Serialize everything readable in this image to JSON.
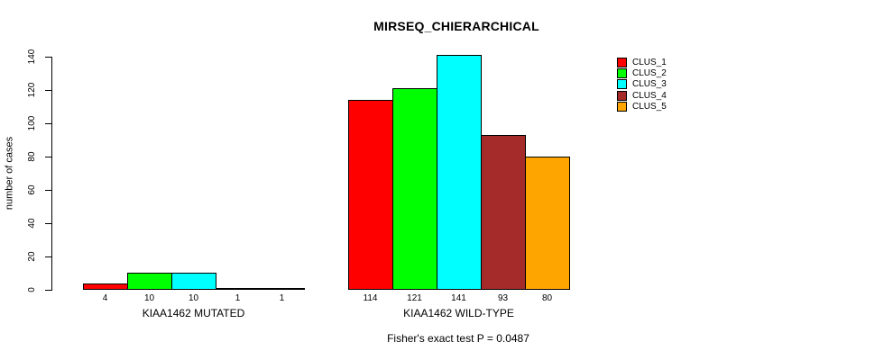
{
  "title": "MIRSEQ_CHIERARCHICAL",
  "ylabel": "number of cases",
  "footer": "Fisher's exact test P = 0.0487",
  "chart_data": {
    "type": "bar",
    "title": "MIRSEQ_CHIERARCHICAL",
    "ylabel": "number of cases",
    "xlabel": "",
    "annotation": "Fisher's exact test P = 0.0487",
    "groups": [
      {
        "label": "KIAA1462 MUTATED",
        "values": [
          4,
          10,
          10,
          1,
          1
        ]
      },
      {
        "label": "KIAA1462 WILD-TYPE",
        "values": [
          114,
          121,
          141,
          93,
          80
        ]
      }
    ],
    "series": [
      {
        "name": "CLUS_1",
        "color": "#ff0000"
      },
      {
        "name": "CLUS_2",
        "color": "#00ff00"
      },
      {
        "name": "CLUS_3",
        "color": "#00ffff"
      },
      {
        "name": "CLUS_4",
        "color": "#a52a2a"
      },
      {
        "name": "CLUS_5",
        "color": "#ffa500"
      }
    ],
    "yticks": [
      0,
      20,
      40,
      60,
      80,
      100,
      120,
      140
    ],
    "ylim": [
      0,
      145
    ],
    "grid": false,
    "legend_position": "right",
    "bar_value_labels": [
      "4",
      "10",
      "10",
      "1",
      "1",
      "114",
      "121",
      "141",
      "93",
      "80"
    ]
  }
}
